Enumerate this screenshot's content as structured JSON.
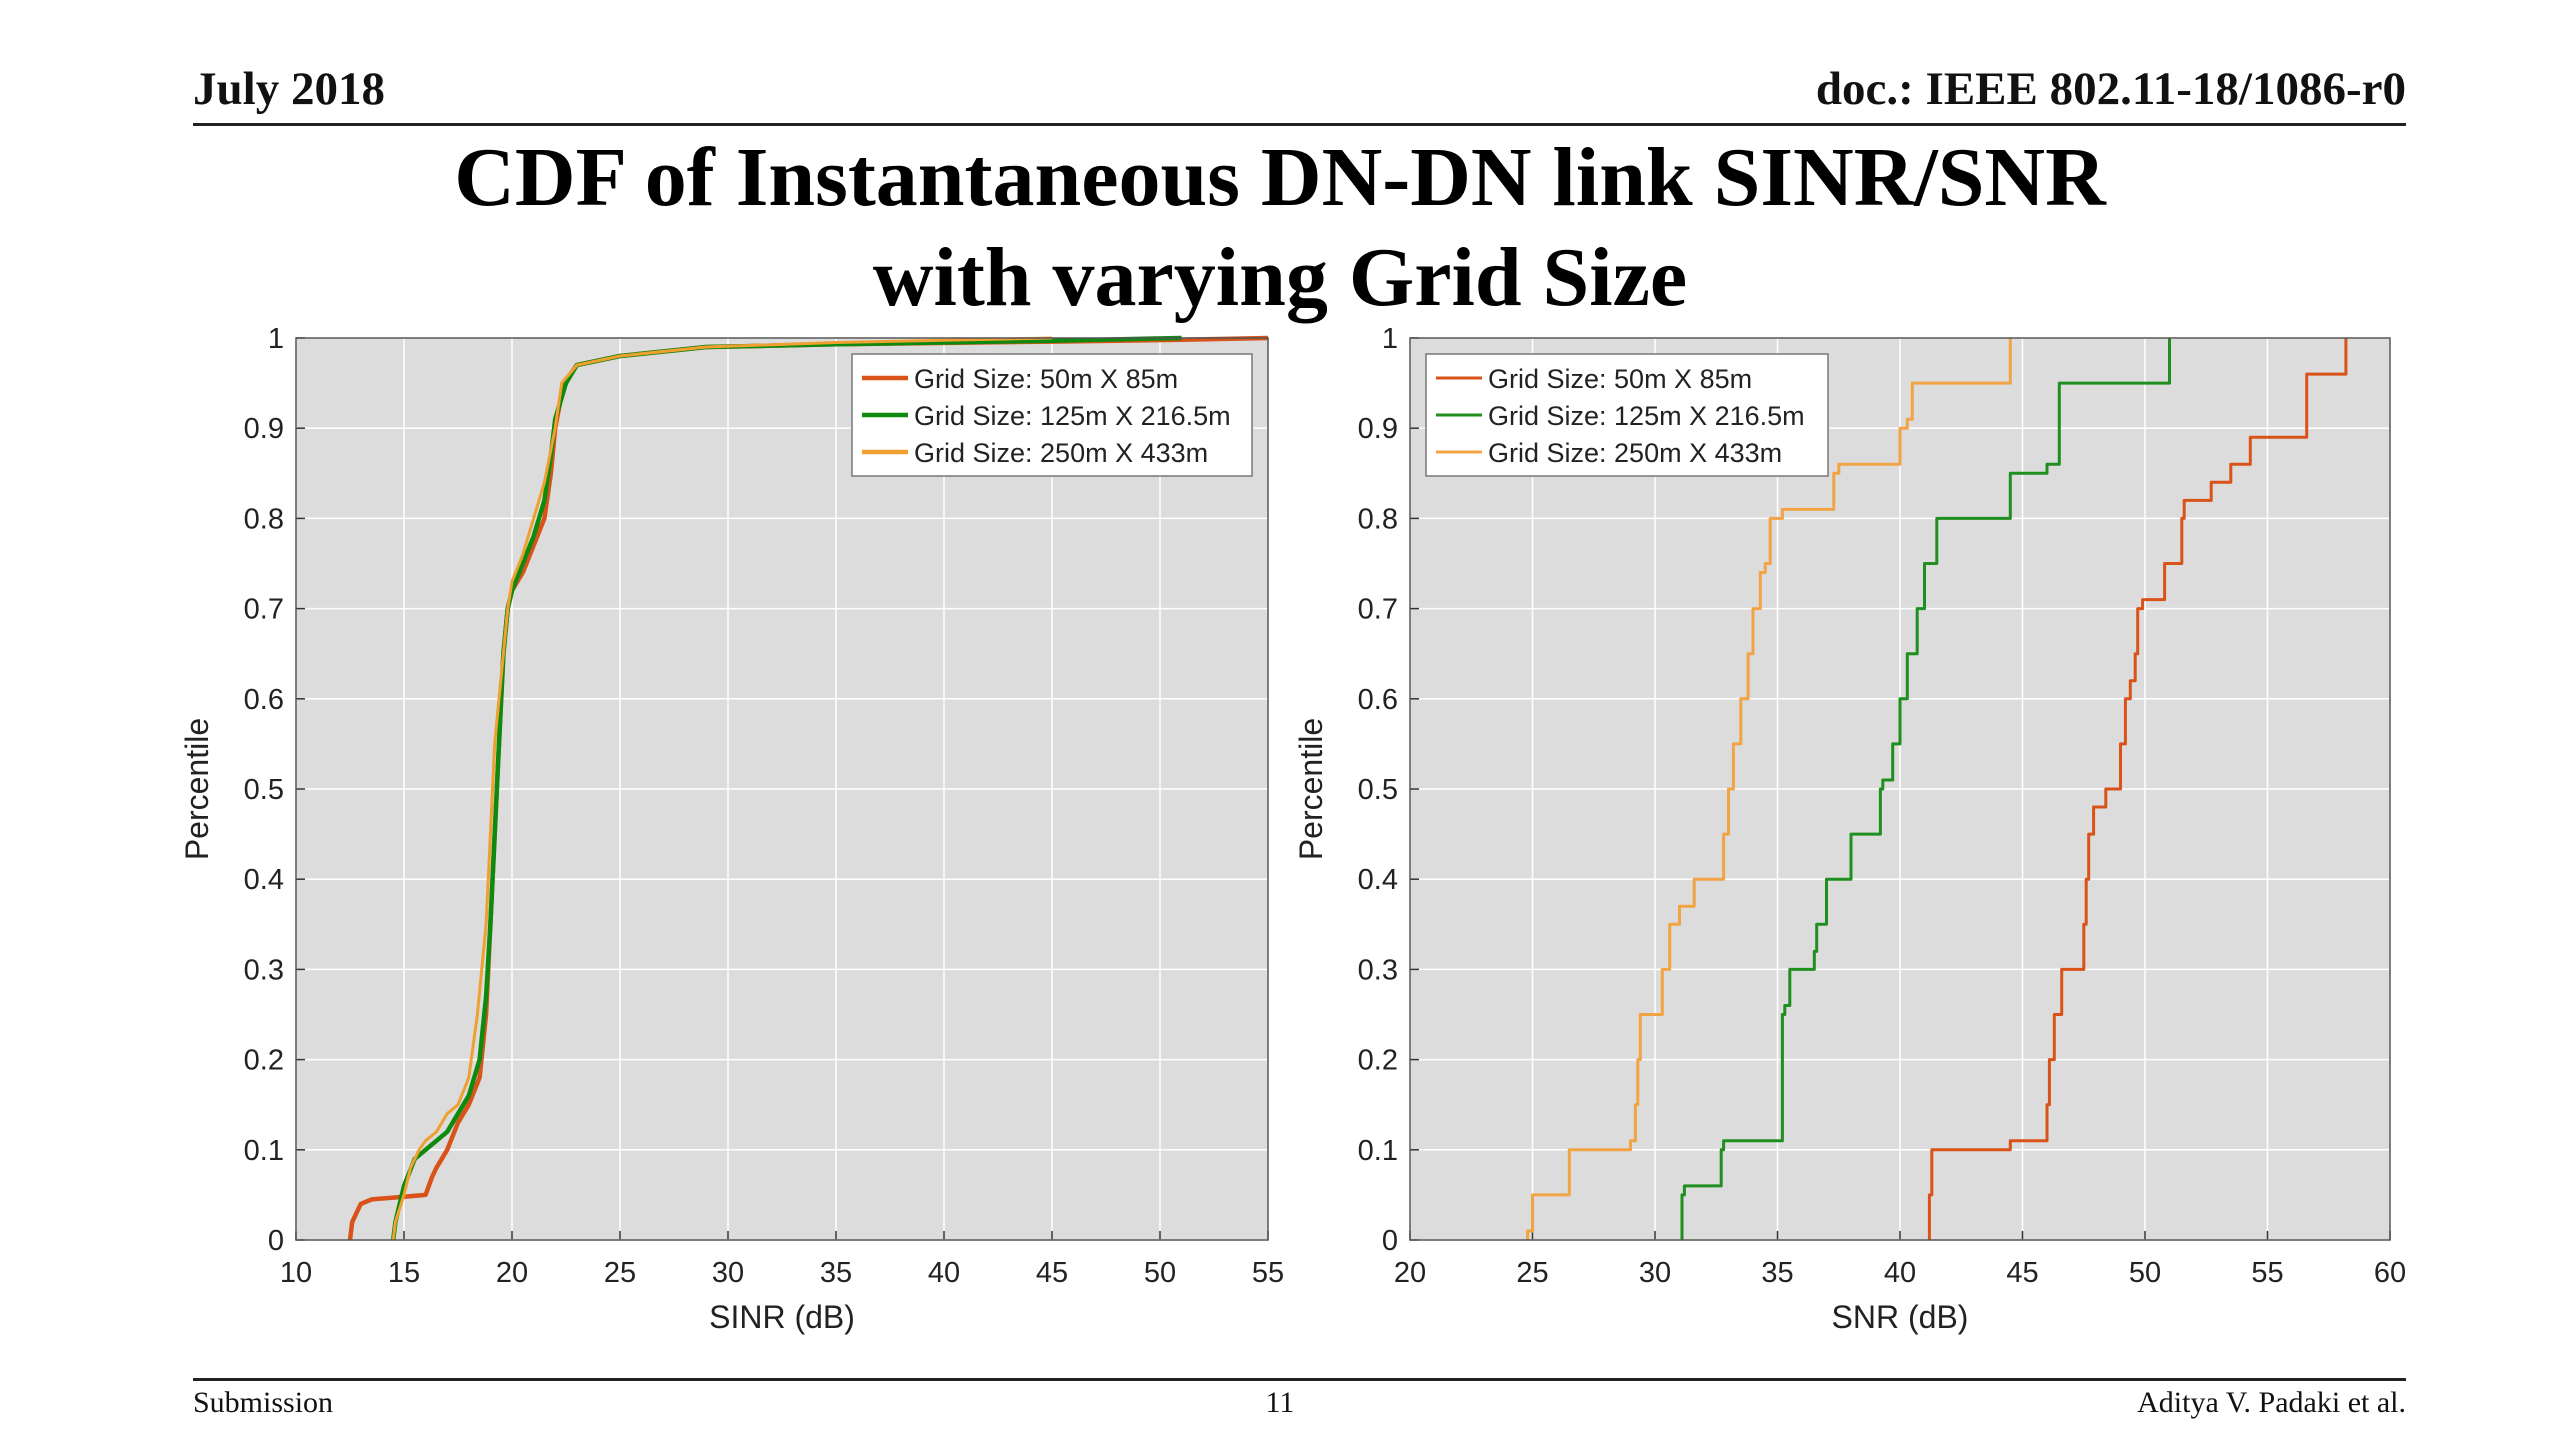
{
  "slide": {
    "header_left": "July  2018",
    "header_right": "doc.: IEEE 802.11-18/1086-r0",
    "title_line1": "CDF of Instantaneous DN-DN link SINR/SNR",
    "title_line2": "with varying Grid Size",
    "footer_left": "Submission",
    "footer_center": "11",
    "footer_right": "Aditya V. Padaki et al."
  },
  "chart_data": [
    {
      "type": "line",
      "xlabel": "SINR (dB)",
      "ylabel": "Percentile",
      "xlim": [
        10,
        55
      ],
      "ylim": [
        0,
        1
      ],
      "xticks": [
        "10",
        "15",
        "20",
        "25",
        "30",
        "35",
        "40",
        "45",
        "50",
        "55"
      ],
      "yticks": [
        "0",
        "0.1",
        "0.2",
        "0.3",
        "0.4",
        "0.5",
        "0.6",
        "0.7",
        "0.8",
        "0.9",
        "1"
      ],
      "grid": true,
      "legend_position": "top-right",
      "series": [
        {
          "name": "Grid Size: 50m X 85m",
          "color": "#d95319",
          "x": [
            12.5,
            12.6,
            12.8,
            13.0,
            13.5,
            15.0,
            16.0,
            16.3,
            16.5,
            17.0,
            17.5,
            18.0,
            18.5,
            18.8,
            19.0,
            19.2,
            19.4,
            19.6,
            19.8,
            20.0,
            20.5,
            21.0,
            21.5,
            21.8,
            22.0,
            22.4,
            23.0,
            25.0,
            29.0,
            35.0,
            45.0,
            51.0,
            55.0
          ],
          "y": [
            0,
            0.02,
            0.03,
            0.04,
            0.045,
            0.048,
            0.05,
            0.07,
            0.08,
            0.1,
            0.13,
            0.15,
            0.18,
            0.25,
            0.35,
            0.45,
            0.55,
            0.65,
            0.7,
            0.72,
            0.74,
            0.77,
            0.8,
            0.85,
            0.9,
            0.95,
            0.97,
            0.98,
            0.99,
            0.993,
            0.996,
            0.998,
            1.0
          ]
        },
        {
          "name": "Grid Size: 125m X 216.5m",
          "color": "#0e8a0e",
          "x": [
            14.5,
            14.6,
            15.0,
            15.5,
            16.0,
            16.5,
            17.0,
            17.5,
            18.0,
            18.5,
            18.8,
            19.0,
            19.2,
            19.4,
            19.6,
            19.8,
            20.0,
            20.5,
            21.0,
            21.5,
            21.8,
            22.0,
            22.5,
            23.0,
            25.0,
            29.0,
            35.0,
            45.0,
            51.0
          ],
          "y": [
            0,
            0.02,
            0.06,
            0.09,
            0.1,
            0.11,
            0.12,
            0.14,
            0.16,
            0.2,
            0.27,
            0.35,
            0.45,
            0.55,
            0.65,
            0.7,
            0.72,
            0.75,
            0.78,
            0.82,
            0.87,
            0.91,
            0.95,
            0.97,
            0.98,
            0.99,
            0.993,
            0.997,
            1.0
          ]
        },
        {
          "name": "Grid Size: 250m X 433m",
          "color": "#f0a030",
          "x": [
            14.5,
            14.6,
            15.0,
            15.3,
            15.7,
            16.0,
            16.5,
            17.0,
            17.5,
            18.0,
            18.4,
            18.8,
            19.0,
            19.2,
            19.4,
            19.6,
            19.8,
            20.0,
            20.5,
            21.0,
            21.5,
            22.0,
            22.3,
            23.0,
            25.0,
            29.0,
            35.0,
            45.0
          ],
          "y": [
            0,
            0.02,
            0.05,
            0.08,
            0.1,
            0.11,
            0.12,
            0.14,
            0.15,
            0.18,
            0.25,
            0.35,
            0.45,
            0.55,
            0.6,
            0.65,
            0.7,
            0.73,
            0.76,
            0.8,
            0.84,
            0.9,
            0.95,
            0.97,
            0.98,
            0.99,
            0.995,
            1.0
          ]
        }
      ]
    },
    {
      "type": "line",
      "xlabel": "SNR (dB)",
      "ylabel": "Percentile",
      "xlim": [
        20,
        60
      ],
      "ylim": [
        0,
        1
      ],
      "xticks": [
        "20",
        "25",
        "30",
        "35",
        "40",
        "45",
        "50",
        "55",
        "60"
      ],
      "yticks": [
        "0",
        "0.1",
        "0.2",
        "0.3",
        "0.4",
        "0.5",
        "0.6",
        "0.7",
        "0.8",
        "0.9",
        "1"
      ],
      "grid": true,
      "legend_position": "top-left",
      "series": [
        {
          "name": "Grid Size: 50m X 85m",
          "color": "#d95319",
          "x": [
            41.2,
            41.2,
            41.3,
            41.3,
            44.5,
            44.5,
            46.0,
            46.0,
            46.1,
            46.1,
            46.3,
            46.3,
            46.6,
            46.6,
            47.5,
            47.5,
            47.6,
            47.6,
            47.7,
            47.7,
            47.9,
            47.9,
            48.4,
            48.4,
            49.0,
            49.0,
            49.2,
            49.2,
            49.4,
            49.4,
            49.6,
            49.6,
            49.7,
            49.7,
            49.9,
            49.9,
            50.8,
            50.8,
            51.5,
            51.5,
            51.6,
            51.6,
            52.7,
            52.7,
            53.5,
            53.5,
            54.3,
            54.3,
            56.6,
            56.6,
            58.2,
            58.2
          ],
          "y": [
            0,
            0.05,
            0.05,
            0.1,
            0.1,
            0.11,
            0.11,
            0.15,
            0.15,
            0.2,
            0.2,
            0.25,
            0.25,
            0.3,
            0.3,
            0.35,
            0.35,
            0.4,
            0.4,
            0.45,
            0.45,
            0.48,
            0.48,
            0.5,
            0.5,
            0.55,
            0.55,
            0.6,
            0.6,
            0.62,
            0.62,
            0.65,
            0.65,
            0.7,
            0.7,
            0.71,
            0.71,
            0.75,
            0.75,
            0.8,
            0.8,
            0.82,
            0.82,
            0.84,
            0.84,
            0.86,
            0.86,
            0.89,
            0.89,
            0.96,
            0.96,
            1.0
          ]
        },
        {
          "name": "Grid Size: 125m X 216.5m",
          "color": "#1f8f1f",
          "x": [
            31.1,
            31.1,
            31.2,
            31.2,
            32.7,
            32.7,
            32.8,
            32.8,
            35.2,
            35.2,
            35.3,
            35.3,
            35.5,
            35.5,
            36.5,
            36.5,
            36.6,
            36.6,
            37.0,
            37.0,
            38.0,
            38.0,
            39.2,
            39.2,
            39.3,
            39.3,
            39.7,
            39.7,
            40.0,
            40.0,
            40.3,
            40.3,
            40.7,
            40.7,
            41.0,
            41.0,
            41.5,
            41.5,
            44.5,
            44.5,
            46.0,
            46.0,
            46.5,
            46.5,
            51.0,
            51.0
          ],
          "y": [
            0,
            0.05,
            0.05,
            0.06,
            0.06,
            0.1,
            0.1,
            0.11,
            0.11,
            0.25,
            0.25,
            0.26,
            0.26,
            0.3,
            0.3,
            0.32,
            0.32,
            0.35,
            0.35,
            0.4,
            0.4,
            0.45,
            0.45,
            0.5,
            0.5,
            0.51,
            0.51,
            0.55,
            0.55,
            0.6,
            0.6,
            0.65,
            0.65,
            0.7,
            0.7,
            0.75,
            0.75,
            0.8,
            0.8,
            0.85,
            0.85,
            0.86,
            0.86,
            0.95,
            0.95,
            1.0
          ]
        },
        {
          "name": "Grid Size: 250m X 433m",
          "color": "#f2a444",
          "x": [
            24.8,
            24.8,
            25.0,
            25.0,
            26.5,
            26.5,
            29.0,
            29.0,
            29.2,
            29.2,
            29.3,
            29.3,
            29.4,
            29.4,
            30.3,
            30.3,
            30.6,
            30.6,
            31.0,
            31.0,
            31.6,
            31.6,
            32.8,
            32.8,
            33.0,
            33.0,
            33.2,
            33.2,
            33.5,
            33.5,
            33.8,
            33.8,
            34.0,
            34.0,
            34.3,
            34.3,
            34.5,
            34.5,
            34.7,
            34.7,
            35.2,
            35.2,
            37.3,
            37.3,
            37.5,
            37.5,
            40.0,
            40.0,
            40.3,
            40.3,
            40.5,
            40.5,
            44.5,
            44.5
          ],
          "y": [
            0,
            0.01,
            0.01,
            0.05,
            0.05,
            0.1,
            0.1,
            0.11,
            0.11,
            0.15,
            0.15,
            0.2,
            0.2,
            0.25,
            0.25,
            0.3,
            0.3,
            0.35,
            0.35,
            0.37,
            0.37,
            0.4,
            0.4,
            0.45,
            0.45,
            0.5,
            0.5,
            0.55,
            0.55,
            0.6,
            0.6,
            0.65,
            0.65,
            0.7,
            0.7,
            0.74,
            0.74,
            0.75,
            0.75,
            0.8,
            0.8,
            0.81,
            0.81,
            0.85,
            0.85,
            0.86,
            0.86,
            0.9,
            0.9,
            0.91,
            0.91,
            0.95,
            0.95,
            1.0
          ]
        }
      ]
    }
  ]
}
